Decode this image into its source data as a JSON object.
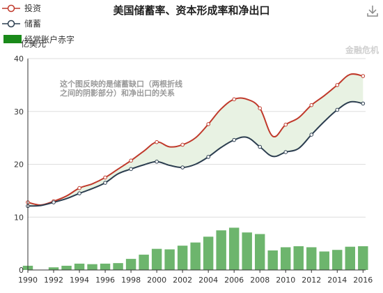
{
  "title": "美国储蓄率、资本形成率和净出口",
  "watermark": "金融危机",
  "download_icon": "download-icon",
  "colors": {
    "investment": "#c0392b",
    "savings": "#2c3e50",
    "deficit_bar": "#6db56d",
    "gap_fill": "#e8f2e3",
    "legend_bar": "#1a8a1a"
  },
  "chart_data": {
    "type": "line",
    "title": "美国储蓄率、资本形成率和净出口",
    "xlabel": "",
    "ylabel": "亿美元",
    "xlim": [
      1990,
      2016.2
    ],
    "ylim": [
      0,
      40
    ],
    "yticks": [
      "0",
      "10",
      "20",
      "30",
      "40"
    ],
    "xticks": [
      "1990",
      "1992",
      "1994",
      "1996",
      "1998",
      "2000",
      "2002",
      "2004",
      "2006",
      "2008",
      "2010",
      "2012",
      "2014",
      "2016"
    ],
    "legend_position": "top-left",
    "grid": "horizontal",
    "annotation": [
      "这个图反映的是储蓄缺口（两根折线",
      "之间的阴影部分）和净出口的关系"
    ],
    "series": [
      {
        "name": "投资",
        "type": "line",
        "x": [
          1990,
          1991,
          1992,
          1993,
          1994,
          1995,
          1996,
          1997,
          1998,
          1999,
          2000,
          2001,
          2002,
          2003,
          2004,
          2005,
          2006,
          2007,
          2008,
          2009,
          2010,
          2011,
          2012,
          2013,
          2014,
          2015,
          2016
        ],
        "values": [
          12.8,
          12.3,
          13.0,
          14.0,
          15.5,
          16.3,
          17.5,
          19.1,
          20.7,
          22.5,
          24.2,
          23.3,
          23.7,
          25.0,
          27.6,
          30.5,
          32.3,
          32.3,
          30.6,
          25.3,
          27.5,
          28.8,
          31.2,
          33.0,
          35.0,
          37.0,
          36.7
        ]
      },
      {
        "name": "储蓄",
        "type": "line",
        "x": [
          1990,
          1991,
          1992,
          1993,
          1994,
          1995,
          1996,
          1997,
          1998,
          1999,
          2000,
          2001,
          2002,
          2003,
          2004,
          2005,
          2006,
          2007,
          2008,
          2009,
          2010,
          2011,
          2012,
          2013,
          2014,
          2015,
          2016
        ],
        "values": [
          12.1,
          12.2,
          12.8,
          13.5,
          14.5,
          15.4,
          16.5,
          18.2,
          19.1,
          19.9,
          20.5,
          19.8,
          19.4,
          20.0,
          21.4,
          23.2,
          24.6,
          25.1,
          23.3,
          21.5,
          22.3,
          23.0,
          25.6,
          28.1,
          30.3,
          31.8,
          31.5
        ]
      },
      {
        "name": "经常账户赤字",
        "type": "bar",
        "x": [
          1990,
          1991,
          1992,
          1993,
          1994,
          1995,
          1996,
          1997,
          1998,
          1999,
          2000,
          2001,
          2002,
          2003,
          2004,
          2005,
          2006,
          2007,
          2008,
          2009,
          2010,
          2011,
          2012,
          2013,
          2014,
          2015,
          2016
        ],
        "values": [
          0.8,
          0.0,
          0.5,
          0.8,
          1.2,
          1.1,
          1.2,
          1.3,
          2.1,
          2.9,
          4.0,
          3.9,
          4.6,
          5.2,
          6.3,
          7.5,
          8.0,
          7.1,
          6.8,
          3.7,
          4.3,
          4.5,
          4.3,
          3.5,
          3.8,
          4.4,
          4.5
        ]
      }
    ]
  }
}
